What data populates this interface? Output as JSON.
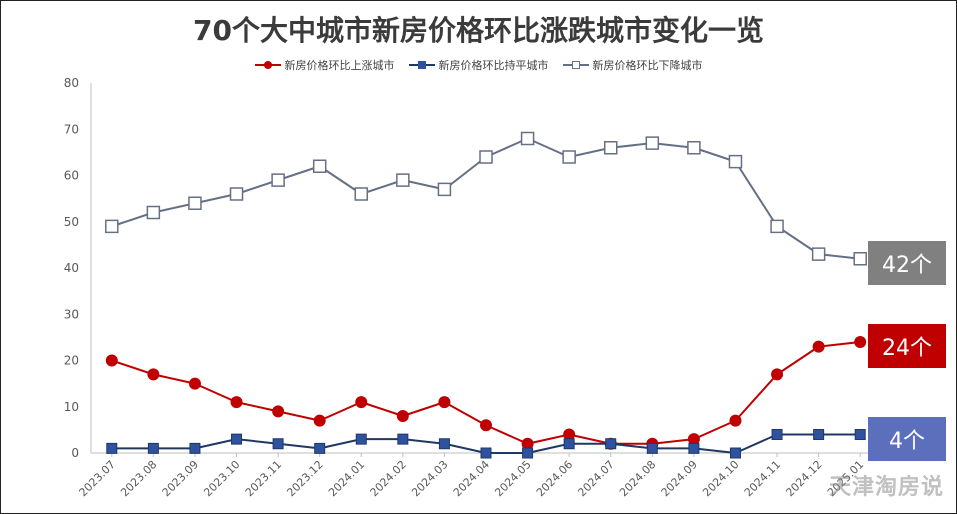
{
  "chart_data": {
    "type": "line",
    "title": "70个大中城市新房价格环比涨跌城市变化一览",
    "xlabel": "",
    "ylabel": "",
    "ylim": [
      0,
      80
    ],
    "yticks": [
      0,
      10,
      20,
      30,
      40,
      50,
      60,
      70,
      80
    ],
    "grid": false,
    "legend_position": "top-center",
    "categories": [
      "2023.07",
      "2023.08",
      "2023.09",
      "2023.10",
      "2023.11",
      "2023.12",
      "2024.01",
      "2024.02",
      "2024.03",
      "2024.04",
      "2024.05",
      "2024.06",
      "2024.07",
      "2024.08",
      "2024.09",
      "2024.10",
      "2024.11",
      "2024.12",
      "2025.01"
    ],
    "series": [
      {
        "name": "新房价格环比上涨城市",
        "values": [
          20,
          17,
          15,
          11,
          9,
          7,
          11,
          8,
          11,
          6,
          2,
          4,
          2,
          2,
          3,
          7,
          17,
          23,
          24
        ],
        "color": "#c00000",
        "marker": "circle",
        "callout": "24个",
        "callout_color": "#c00000"
      },
      {
        "name": "新房价格环比持平城市",
        "values": [
          1,
          1,
          1,
          3,
          2,
          1,
          3,
          3,
          2,
          0,
          0,
          2,
          2,
          1,
          1,
          0,
          4,
          4,
          4
        ],
        "color": "#1f3864",
        "marker": "square",
        "callout": "4个",
        "callout_color": "#5b6fbd"
      },
      {
        "name": "新房价格环比下降城市",
        "values": [
          49,
          52,
          54,
          56,
          59,
          62,
          56,
          59,
          57,
          64,
          68,
          64,
          66,
          67,
          66,
          63,
          49,
          43,
          42
        ],
        "color": "#667085",
        "marker": "square-open",
        "callout": "42个",
        "callout_color": "#808080"
      }
    ]
  },
  "watermark": "天津淘房说"
}
